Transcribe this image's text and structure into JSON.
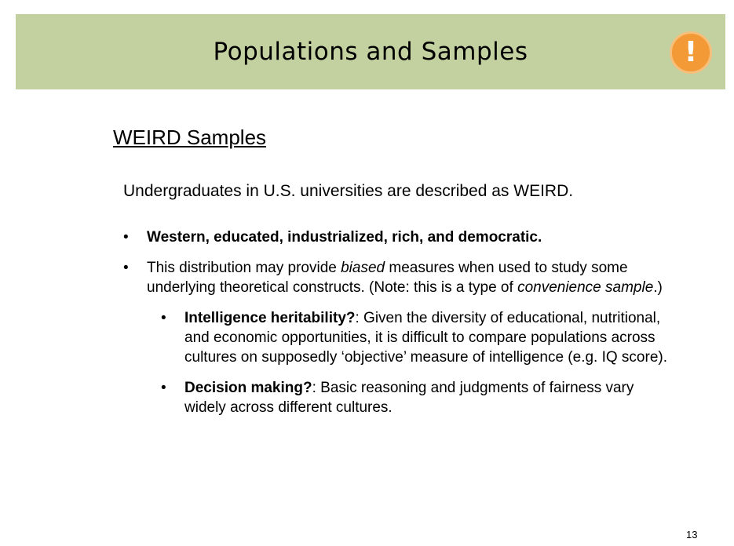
{
  "header": {
    "title": "Populations and Samples",
    "icon": "exclamation-icon",
    "icon_glyph": "!",
    "background": "#c3d1a1",
    "icon_color": "#f39a36"
  },
  "content": {
    "section_title": "WEIRD Samples",
    "intro": "Undergraduates in U.S. universities are described as WEIRD.",
    "bullet1": "Western, educated, industrialized, rich, and democratic.",
    "bullet2": {
      "part1": "This distribution may provide ",
      "italic1": "biased",
      "part2": " measures when used to study some underlying theoretical constructs. (Note: this is a type of ",
      "italic2": "convenience sample",
      "part3": ".)"
    },
    "sub1": {
      "bold": "Intelligence heritability?",
      "text": ": Given the diversity of educational, nutritional, and economic opportunities, it is difficult to compare populations across cultures on supposedly ‘objective’ measure of intelligence (e.g. IQ score)."
    },
    "sub2": {
      "bold": "Decision making?",
      "text": ": Basic reasoning and judgments of fairness vary widely across different cultures."
    }
  },
  "footer": {
    "page_number": "13"
  }
}
